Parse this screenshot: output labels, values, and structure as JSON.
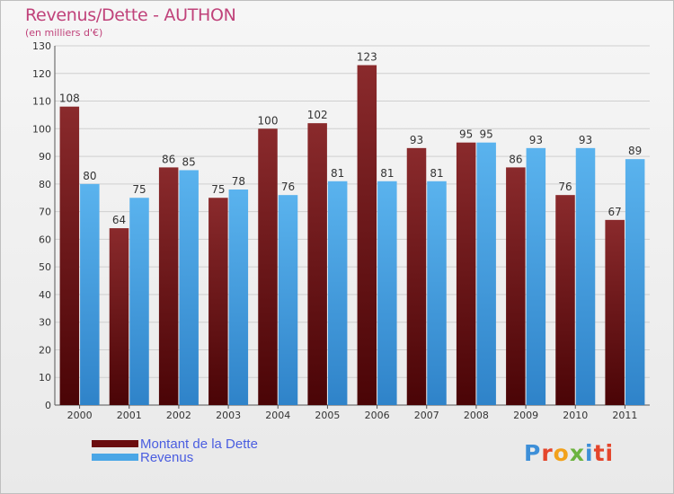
{
  "header": {
    "title": "Revenus/Dette - AUTHON",
    "subtitle": "(en milliers d'€)"
  },
  "colors": {
    "dette": "#6b0d0f",
    "revenus": "#4aa6e6",
    "title": "#c0427a",
    "legend_text": "#4a5de0"
  },
  "legend": {
    "items": [
      {
        "label": "Montant de la Dette",
        "color": "#6b0d0f"
      },
      {
        "label": "Revenus",
        "color": "#4aa6e6"
      }
    ]
  },
  "logo": {
    "letters": [
      "P",
      "r",
      "o",
      "x",
      "i",
      "ti"
    ]
  },
  "chart_data": {
    "type": "bar",
    "title": "Revenus/Dette - AUTHON",
    "subtitle": "(en milliers d'€)",
    "categories": [
      "2000",
      "2001",
      "2002",
      "2003",
      "2004",
      "2005",
      "2006",
      "2007",
      "2008",
      "2009",
      "2010",
      "2011"
    ],
    "series": [
      {
        "name": "Montant de la Dette",
        "values": [
          108,
          64,
          86,
          75,
          100,
          102,
          123,
          93,
          95,
          86,
          76,
          67
        ]
      },
      {
        "name": "Revenus",
        "values": [
          80,
          75,
          85,
          78,
          76,
          81,
          81,
          81,
          95,
          93,
          93,
          89
        ]
      }
    ],
    "ylim": [
      0,
      130
    ],
    "yticks": [
      0,
      10,
      20,
      30,
      40,
      50,
      60,
      70,
      80,
      90,
      100,
      110,
      120,
      130
    ],
    "grid": true,
    "legend": "bottom-left"
  }
}
